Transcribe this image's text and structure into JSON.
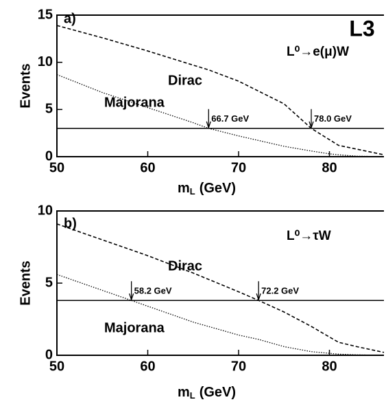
{
  "chart_data": [
    {
      "type": "line",
      "panel_label": "a)",
      "experiment": "L3",
      "process": "L⁰→e(μ)W",
      "xlabel": {
        "main": "m",
        "sub": "L",
        "unit": "(GeV)"
      },
      "ylabel": "Events",
      "xlim": [
        50,
        86
      ],
      "xticks": [
        50,
        60,
        70,
        80
      ],
      "ylim": [
        0,
        15
      ],
      "yticks": [
        0,
        5,
        10,
        15
      ],
      "x": [
        50,
        55,
        60,
        65,
        66.7,
        70,
        75,
        78,
        80,
        81,
        83,
        86
      ],
      "series": [
        {
          "name": "Dirac",
          "color": "#000000",
          "style": "dashed",
          "values": [
            13.9,
            12.6,
            11.2,
            9.7,
            9.2,
            8.0,
            5.6,
            3.0,
            1.8,
            1.2,
            0.8,
            0.2
          ]
        },
        {
          "name": "Majorana",
          "color": "#000000",
          "style": "dotted",
          "values": [
            8.7,
            6.8,
            5.2,
            3.6,
            3.0,
            2.2,
            1.1,
            0.6,
            0.3,
            0.2,
            0.05,
            0
          ]
        }
      ],
      "limit": 3.0,
      "annotations": [
        {
          "x": 66.7,
          "label": "66.7 GeV"
        },
        {
          "x": 78.0,
          "label": "78.0 GeV"
        }
      ]
    },
    {
      "type": "line",
      "panel_label": "b)",
      "process": "L⁰→τW",
      "xlabel": {
        "main": "m",
        "sub": "L",
        "unit": "(GeV)"
      },
      "ylabel": "Events",
      "xlim": [
        50,
        86
      ],
      "xticks": [
        50,
        60,
        70,
        80
      ],
      "ylim": [
        0,
        10
      ],
      "yticks": [
        0,
        5,
        10
      ],
      "x": [
        50,
        55,
        58.2,
        60,
        65,
        70,
        72.2,
        75,
        78,
        81,
        83,
        86
      ],
      "series": [
        {
          "name": "Dirac",
          "color": "#000000",
          "style": "dashed",
          "values": [
            9.1,
            8.0,
            7.3,
            6.9,
            5.7,
            4.4,
            3.8,
            3.0,
            2.0,
            0.9,
            0.6,
            0.2
          ]
        },
        {
          "name": "Majorana",
          "color": "#000000",
          "style": "dotted",
          "values": [
            5.6,
            4.5,
            3.8,
            3.4,
            2.3,
            1.4,
            1.1,
            0.6,
            0.25,
            0.08,
            0.03,
            0
          ]
        }
      ],
      "limit": 3.8,
      "annotations": [
        {
          "x": 58.2,
          "label": "58.2 GeV"
        },
        {
          "x": 72.2,
          "label": "72.2 GeV"
        }
      ]
    }
  ]
}
